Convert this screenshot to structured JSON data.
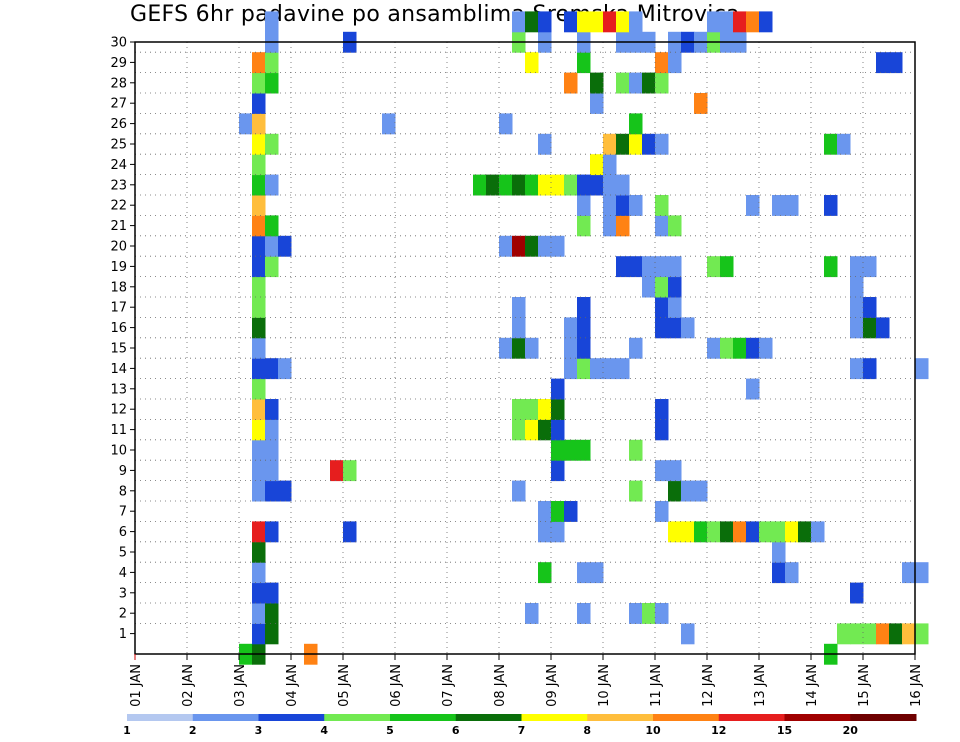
{
  "chart_data": {
    "type": "heatmap",
    "title": "GEFS 6hr padavine po ansamblima Sremska Mitrovica",
    "xlabel": "",
    "ylabel": "",
    "x_ticks": [
      "01 JAN",
      "02 JAN",
      "03 JAN",
      "04 JAN",
      "05 JAN",
      "06 JAN",
      "07 JAN",
      "08 JAN",
      "09 JAN",
      "10 JAN",
      "11 JAN",
      "12 JAN",
      "13 JAN",
      "14 JAN",
      "15 JAN",
      "16 JAN"
    ],
    "y_ticks": [
      "1",
      "2",
      "3",
      "4",
      "5",
      "6",
      "7",
      "8",
      "9",
      "10",
      "11",
      "12",
      "13",
      "14",
      "15",
      "16",
      "17",
      "18",
      "19",
      "20",
      "21",
      "22",
      "23",
      "24",
      "25",
      "26",
      "27",
      "28",
      "29",
      "30"
    ],
    "x_unit": "6-hour step from 01 JAN 00Z (4 steps per day)",
    "xlim": [
      0,
      60
    ],
    "ylim": [
      0,
      30
    ],
    "grid": true,
    "colorbar": {
      "labels": [
        "1",
        "2",
        "3",
        "4",
        "5",
        "6",
        "7",
        "8",
        "10",
        "12",
        "15",
        "20"
      ],
      "colors": [
        "#b4c8f0",
        "#6a96ee",
        "#1845d8",
        "#72ea52",
        "#16c41a",
        "#0a6e0a",
        "#ffff00",
        "#ffbe3c",
        "#ff8214",
        "#e61e1e",
        "#a00000",
        "#6e0000"
      ]
    },
    "cells": [
      [
        8,
        0,
        4
      ],
      [
        9,
        0,
        5
      ],
      [
        13,
        0,
        8
      ],
      [
        53,
        0,
        4
      ],
      [
        9,
        1,
        2
      ],
      [
        10,
        1,
        5
      ],
      [
        42,
        1,
        1
      ],
      [
        54,
        1,
        3
      ],
      [
        55,
        1,
        3
      ],
      [
        56,
        1,
        3
      ],
      [
        57,
        1,
        8
      ],
      [
        58,
        1,
        5
      ],
      [
        59,
        1,
        7
      ],
      [
        60,
        1,
        3
      ],
      [
        9,
        2,
        1
      ],
      [
        10,
        2,
        5
      ],
      [
        30,
        2,
        1
      ],
      [
        34,
        2,
        1
      ],
      [
        38,
        2,
        1
      ],
      [
        39,
        2,
        3
      ],
      [
        40,
        2,
        1
      ],
      [
        9,
        3,
        2
      ],
      [
        10,
        3,
        2
      ],
      [
        55,
        3,
        2
      ],
      [
        9,
        4,
        1
      ],
      [
        31,
        4,
        4
      ],
      [
        34,
        4,
        1
      ],
      [
        35,
        4,
        1
      ],
      [
        49,
        4,
        2
      ],
      [
        50,
        4,
        1
      ],
      [
        59,
        4,
        1
      ],
      [
        60,
        4,
        1
      ],
      [
        9,
        5,
        5
      ],
      [
        49,
        5,
        1
      ],
      [
        9,
        6,
        9
      ],
      [
        10,
        6,
        2
      ],
      [
        16,
        6,
        2
      ],
      [
        31,
        6,
        1
      ],
      [
        32,
        6,
        1
      ],
      [
        41,
        6,
        6
      ],
      [
        42,
        6,
        6
      ],
      [
        43,
        6,
        4
      ],
      [
        44,
        6,
        3
      ],
      [
        45,
        6,
        5
      ],
      [
        46,
        6,
        8
      ],
      [
        47,
        6,
        2
      ],
      [
        48,
        6,
        3
      ],
      [
        49,
        6,
        3
      ],
      [
        50,
        6,
        6
      ],
      [
        51,
        6,
        5
      ],
      [
        52,
        6,
        1
      ],
      [
        31,
        7,
        1
      ],
      [
        32,
        7,
        4
      ],
      [
        33,
        7,
        2
      ],
      [
        40,
        7,
        1
      ],
      [
        9,
        8,
        1
      ],
      [
        10,
        8,
        2
      ],
      [
        11,
        8,
        2
      ],
      [
        29,
        8,
        1
      ],
      [
        38,
        8,
        3
      ],
      [
        41,
        8,
        5
      ],
      [
        42,
        8,
        1
      ],
      [
        43,
        8,
        1
      ],
      [
        9,
        9,
        1
      ],
      [
        10,
        9,
        1
      ],
      [
        15,
        9,
        9
      ],
      [
        16,
        9,
        3
      ],
      [
        32,
        9,
        2
      ],
      [
        40,
        9,
        1
      ],
      [
        41,
        9,
        1
      ],
      [
        9,
        10,
        1
      ],
      [
        10,
        10,
        1
      ],
      [
        32,
        10,
        4
      ],
      [
        33,
        10,
        4
      ],
      [
        34,
        10,
        4
      ],
      [
        38,
        10,
        3
      ],
      [
        9,
        11,
        6
      ],
      [
        10,
        11,
        1
      ],
      [
        29,
        11,
        3
      ],
      [
        30,
        11,
        6
      ],
      [
        31,
        11,
        5
      ],
      [
        32,
        11,
        2
      ],
      [
        40,
        11,
        2
      ],
      [
        9,
        12,
        7
      ],
      [
        10,
        12,
        2
      ],
      [
        29,
        12,
        3
      ],
      [
        30,
        12,
        3
      ],
      [
        31,
        12,
        6
      ],
      [
        32,
        12,
        5
      ],
      [
        40,
        12,
        2
      ],
      [
        9,
        13,
        3
      ],
      [
        32,
        13,
        2
      ],
      [
        47,
        13,
        1
      ],
      [
        9,
        14,
        2
      ],
      [
        10,
        14,
        2
      ],
      [
        11,
        14,
        1
      ],
      [
        33,
        14,
        1
      ],
      [
        34,
        14,
        3
      ],
      [
        35,
        14,
        1
      ],
      [
        36,
        14,
        1
      ],
      [
        37,
        14,
        1
      ],
      [
        55,
        14,
        1
      ],
      [
        56,
        14,
        2
      ],
      [
        60,
        14,
        1
      ],
      [
        9,
        15,
        1
      ],
      [
        28,
        15,
        1
      ],
      [
        29,
        15,
        5
      ],
      [
        30,
        15,
        1
      ],
      [
        33,
        15,
        1
      ],
      [
        34,
        15,
        2
      ],
      [
        38,
        15,
        1
      ],
      [
        44,
        15,
        1
      ],
      [
        45,
        15,
        3
      ],
      [
        46,
        15,
        4
      ],
      [
        47,
        15,
        2
      ],
      [
        48,
        15,
        1
      ],
      [
        9,
        16,
        5
      ],
      [
        29,
        16,
        1
      ],
      [
        33,
        16,
        1
      ],
      [
        34,
        16,
        2
      ],
      [
        40,
        16,
        2
      ],
      [
        41,
        16,
        2
      ],
      [
        42,
        16,
        1
      ],
      [
        55,
        16,
        1
      ],
      [
        56,
        16,
        5
      ],
      [
        57,
        16,
        2
      ],
      [
        9,
        17,
        3
      ],
      [
        29,
        17,
        1
      ],
      [
        34,
        17,
        2
      ],
      [
        40,
        17,
        2
      ],
      [
        41,
        17,
        1
      ],
      [
        55,
        17,
        1
      ],
      [
        56,
        17,
        2
      ],
      [
        9,
        18,
        3
      ],
      [
        39,
        18,
        1
      ],
      [
        40,
        18,
        3
      ],
      [
        41,
        18,
        2
      ],
      [
        55,
        18,
        1
      ],
      [
        9,
        19,
        2
      ],
      [
        10,
        19,
        3
      ],
      [
        37,
        19,
        2
      ],
      [
        38,
        19,
        2
      ],
      [
        39,
        19,
        1
      ],
      [
        40,
        19,
        1
      ],
      [
        41,
        19,
        1
      ],
      [
        44,
        19,
        3
      ],
      [
        45,
        19,
        4
      ],
      [
        53,
        19,
        4
      ],
      [
        55,
        19,
        1
      ],
      [
        56,
        19,
        1
      ],
      [
        9,
        20,
        2
      ],
      [
        10,
        20,
        1
      ],
      [
        11,
        20,
        2
      ],
      [
        28,
        20,
        1
      ],
      [
        29,
        20,
        10
      ],
      [
        30,
        20,
        5
      ],
      [
        31,
        20,
        1
      ],
      [
        32,
        20,
        1
      ],
      [
        9,
        21,
        8
      ],
      [
        10,
        21,
        4
      ],
      [
        34,
        21,
        3
      ],
      [
        36,
        21,
        1
      ],
      [
        37,
        21,
        8
      ],
      [
        40,
        21,
        1
      ],
      [
        41,
        21,
        3
      ],
      [
        9,
        22,
        7
      ],
      [
        34,
        22,
        1
      ],
      [
        36,
        22,
        1
      ],
      [
        37,
        22,
        2
      ],
      [
        38,
        22,
        1
      ],
      [
        40,
        22,
        3
      ],
      [
        47,
        22,
        1
      ],
      [
        49,
        22,
        1
      ],
      [
        50,
        22,
        1
      ],
      [
        53,
        22,
        2
      ],
      [
        9,
        23,
        4
      ],
      [
        10,
        23,
        1
      ],
      [
        26,
        23,
        4
      ],
      [
        27,
        23,
        5
      ],
      [
        28,
        23,
        4
      ],
      [
        29,
        23,
        5
      ],
      [
        30,
        23,
        4
      ],
      [
        31,
        23,
        6
      ],
      [
        32,
        23,
        6
      ],
      [
        33,
        23,
        3
      ],
      [
        34,
        23,
        2
      ],
      [
        35,
        23,
        2
      ],
      [
        36,
        23,
        1
      ],
      [
        37,
        23,
        1
      ],
      [
        9,
        24,
        3
      ],
      [
        35,
        24,
        6
      ],
      [
        36,
        24,
        1
      ],
      [
        9,
        25,
        6
      ],
      [
        10,
        25,
        3
      ],
      [
        31,
        25,
        1
      ],
      [
        36,
        25,
        7
      ],
      [
        37,
        25,
        5
      ],
      [
        38,
        25,
        6
      ],
      [
        39,
        25,
        2
      ],
      [
        40,
        25,
        1
      ],
      [
        53,
        25,
        4
      ],
      [
        54,
        25,
        1
      ],
      [
        8,
        26,
        1
      ],
      [
        9,
        26,
        7
      ],
      [
        19,
        26,
        1
      ],
      [
        28,
        26,
        1
      ],
      [
        38,
        26,
        4
      ],
      [
        9,
        27,
        2
      ],
      [
        35,
        27,
        1
      ],
      [
        43,
        27,
        8
      ],
      [
        9,
        28,
        3
      ],
      [
        10,
        28,
        4
      ],
      [
        33,
        28,
        8
      ],
      [
        35,
        28,
        5
      ],
      [
        37,
        28,
        3
      ],
      [
        38,
        28,
        1
      ],
      [
        39,
        28,
        5
      ],
      [
        40,
        28,
        3
      ],
      [
        9,
        29,
        8
      ],
      [
        10,
        29,
        3
      ],
      [
        30,
        29,
        6
      ],
      [
        34,
        29,
        4
      ],
      [
        40,
        29,
        8
      ],
      [
        41,
        29,
        1
      ],
      [
        57,
        29,
        2
      ],
      [
        58,
        29,
        2
      ],
      [
        10,
        30,
        1
      ],
      [
        16,
        30,
        2
      ],
      [
        29,
        30,
        3
      ],
      [
        31,
        30,
        1
      ],
      [
        34,
        30,
        1
      ],
      [
        37,
        30,
        1
      ],
      [
        38,
        30,
        1
      ],
      [
        39,
        30,
        1
      ],
      [
        41,
        30,
        1
      ],
      [
        42,
        30,
        2
      ],
      [
        43,
        30,
        1
      ],
      [
        44,
        30,
        3
      ],
      [
        45,
        30,
        1
      ],
      [
        46,
        30,
        1
      ],
      [
        10,
        31,
        1
      ],
      [
        29,
        31,
        1
      ],
      [
        30,
        31,
        5
      ],
      [
        31,
        31,
        2
      ],
      [
        33,
        31,
        2
      ],
      [
        34,
        31,
        6
      ],
      [
        35,
        31,
        6
      ],
      [
        36,
        31,
        9
      ],
      [
        37,
        31,
        6
      ],
      [
        38,
        31,
        1
      ],
      [
        44,
        31,
        1
      ],
      [
        45,
        31,
        1
      ],
      [
        46,
        31,
        9
      ],
      [
        47,
        31,
        8
      ],
      [
        48,
        31,
        2
      ]
    ]
  }
}
